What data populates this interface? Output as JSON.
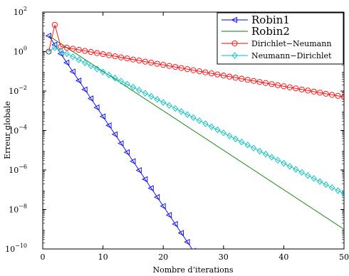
{
  "chart_data": {
    "type": "line",
    "xlabel": "Nombre d’iterations",
    "ylabel": "Erreur globale",
    "xlim": [
      0,
      50
    ],
    "ylim_exponent": [
      -10,
      2
    ],
    "yscale": "log",
    "grid": false,
    "legend_position": "top-right",
    "x_ticks": [
      "0",
      "10",
      "20",
      "30",
      "40",
      "50"
    ],
    "y_tick_base": "10",
    "y_tick_exponents": [
      "2",
      "0",
      "−2",
      "−4",
      "−6",
      "−8",
      "−10"
    ],
    "series": [
      {
        "name": "Robin1",
        "legend_main": "Robin",
        "legend_suffix": "1",
        "color": "#0000ff",
        "marker": "triangle-left",
        "x_start": 1,
        "x_end": 25,
        "log10_y_start": 0.8,
        "log10_y_end": -10.1
      },
      {
        "name": "Robin2",
        "legend_main": "Robin",
        "legend_suffix": "2",
        "color": "#008000",
        "marker": "none",
        "x_start": 1,
        "x_end": 50,
        "log10_y_start": 0.8,
        "log10_y_end": -9.0
      },
      {
        "name": "Dirichlet−Neumann",
        "color": "#ff0000",
        "marker": "circle",
        "x_start": 1,
        "x_end": 50,
        "log10_y_points": [
          [
            1,
            0.0
          ],
          [
            2,
            1.35
          ],
          [
            3,
            0.25
          ]
        ],
        "log10_y_tail_start": 0.25,
        "log10_y_end": -2.3
      },
      {
        "name": "Neumann−Dirichlet",
        "color": "#00bfbf",
        "marker": "diamond",
        "x_start": 1,
        "x_end": 50,
        "log10_y_points": [
          [
            1,
            0.0
          ],
          [
            2,
            0.2
          ]
        ],
        "log10_y_tail_start": 0.2,
        "log10_y_end": -7.2
      }
    ]
  }
}
